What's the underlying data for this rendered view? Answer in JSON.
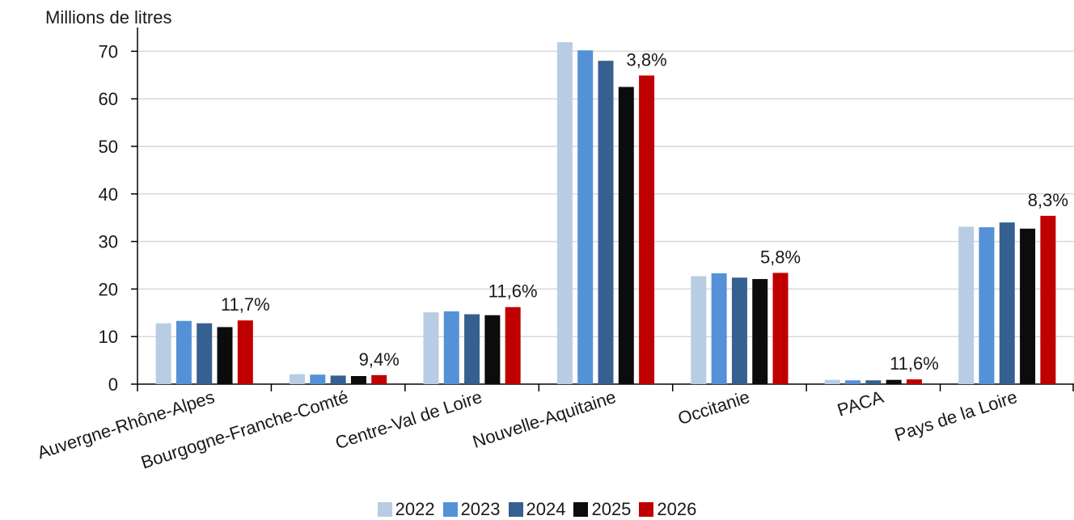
{
  "chart_data": {
    "type": "bar",
    "title": "",
    "ylabel": "Millions de litres",
    "xlabel": "",
    "ylim": [
      0,
      75
    ],
    "yticks": [
      0,
      10,
      20,
      30,
      40,
      50,
      60,
      70
    ],
    "grid": true,
    "legend_position": "bottom",
    "categories": [
      "Auvergne-Rhône-Alpes",
      "Bourgogne-Franche-Comté",
      "Centre-Val de Loire",
      "Nouvelle-Aquitaine",
      "Occitanie",
      "PACA",
      "Pays de la Loire"
    ],
    "series": [
      {
        "name": "2022",
        "color": "#b8cce4",
        "values": [
          12.8,
          2.1,
          15.1,
          71.9,
          22.7,
          0.9,
          33.1
        ]
      },
      {
        "name": "2023",
        "color": "#5591d6",
        "values": [
          13.3,
          2.0,
          15.3,
          70.2,
          23.3,
          0.8,
          33.0
        ]
      },
      {
        "name": "2024",
        "color": "#36608f",
        "values": [
          12.8,
          1.8,
          14.7,
          68.0,
          22.4,
          0.8,
          34.0
        ]
      },
      {
        "name": "2025",
        "color": "#0c0c0c",
        "values": [
          12.0,
          1.7,
          14.5,
          62.5,
          22.1,
          0.9,
          32.7
        ]
      },
      {
        "name": "2026",
        "color": "#c00000",
        "values": [
          13.4,
          1.9,
          16.2,
          64.9,
          23.4,
          1.0,
          35.4
        ]
      }
    ],
    "annotations": [
      "11,7%",
      "9,4%",
      "11,6%",
      "3,8%",
      "5,8%",
      "11,6%",
      "8,3%"
    ]
  }
}
